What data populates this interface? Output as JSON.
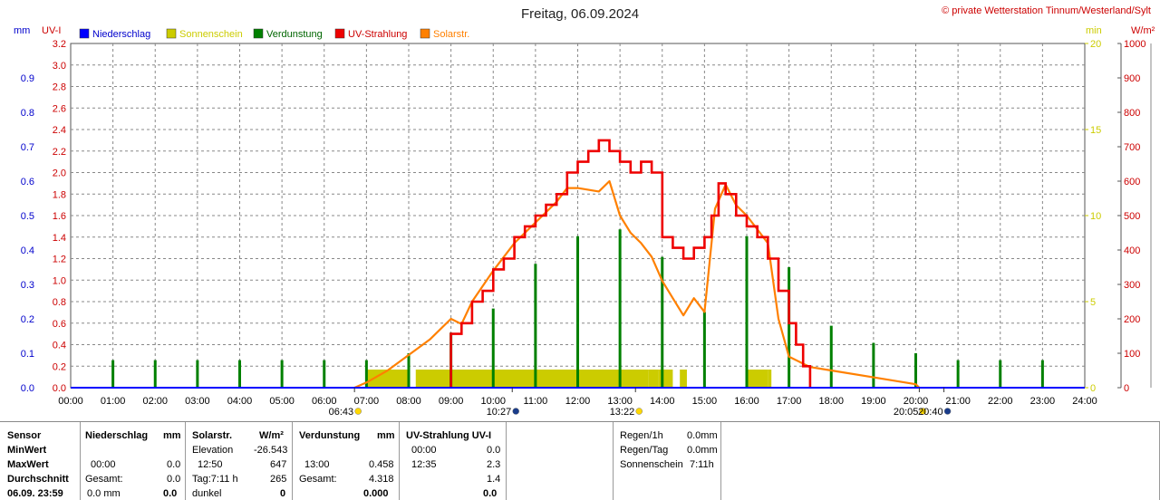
{
  "title": "Freitag, 06.09.2024",
  "copyright": "© private Wetterstation Tinnum/Westerland/Sylt",
  "unit_labels": {
    "mm": "mm",
    "uvi": "UV-I",
    "min": "min",
    "wm2": "W/m²"
  },
  "colors": {
    "niederschlag": "#0000ff",
    "sonnenschein": "#cccc00",
    "verdunstung": "#008000",
    "uv": "#ee0000",
    "solar": "#ff8000"
  },
  "legend": [
    {
      "label": "Niederschlag",
      "color": "#0000ff",
      "text_color": "#0000cc"
    },
    {
      "label": "Sonnenschein",
      "color": "#cccc00",
      "text_color": "#cccc00"
    },
    {
      "label": "Verdunstung",
      "color": "#008000",
      "text_color": "#006600"
    },
    {
      "label": "UV-Strahlung",
      "color": "#ee0000",
      "text_color": "#cc0000"
    },
    {
      "label": "Solarstr.",
      "color": "#ff8000",
      "text_color": "#ff8000"
    }
  ],
  "markers": [
    {
      "time": "13:22",
      "icon": "moon-icon"
    },
    {
      "time": "06:43",
      "icon": "sunrise-icon"
    },
    {
      "time": "10:27",
      "icon": "moon-phase-icon"
    },
    {
      "time": "20:05",
      "icon": "sunset-icon"
    },
    {
      "time": "20:40",
      "icon": "moon-phase-icon"
    }
  ],
  "chart_data": {
    "type": "line",
    "x_ticks": [
      "00:00",
      "01:00",
      "02:00",
      "03:00",
      "04:00",
      "05:00",
      "06:00",
      "07:00",
      "08:00",
      "09:00",
      "10:00",
      "11:00",
      "12:00",
      "13:00",
      "14:00",
      "15:00",
      "16:00",
      "17:00",
      "18:00",
      "19:00",
      "20:00",
      "21:00",
      "22:00",
      "23:00",
      "24:00"
    ],
    "y_mm_ticks": [
      "0.0",
      "0.1",
      "0.2",
      "0.3",
      "0.4",
      "0.5",
      "0.6",
      "0.7",
      "0.8",
      "0.9"
    ],
    "y_mm_range": [
      0,
      1.0
    ],
    "y_uv_ticks": [
      "0.0",
      "0.2",
      "0.4",
      "0.6",
      "0.8",
      "1.0",
      "1.2",
      "1.4",
      "1.6",
      "1.8",
      "2.0",
      "2.2",
      "2.4",
      "2.6",
      "2.8",
      "3.0",
      "3.2"
    ],
    "y_uv_range": [
      0,
      3.2
    ],
    "y_min_ticks": [
      "0",
      "5",
      "10",
      "15",
      "20"
    ],
    "y_min_range": [
      0,
      20
    ],
    "y_wm2_ticks": [
      "0",
      "100",
      "200",
      "300",
      "400",
      "500",
      "600",
      "700",
      "800",
      "900",
      "1000"
    ],
    "y_wm2_range": [
      0,
      1000
    ],
    "grid": true,
    "series": [
      {
        "name": "UV-Strahlung",
        "axis": "UV-I",
        "x": [
          "09:00",
          "09:00",
          "09:15",
          "09:30",
          "09:45",
          "10:00",
          "10:15",
          "10:30",
          "10:45",
          "11:00",
          "11:15",
          "11:30",
          "11:45",
          "12:00",
          "12:15",
          "12:30",
          "12:45",
          "13:00",
          "13:15",
          "13:30",
          "13:45",
          "14:00",
          "14:15",
          "14:30",
          "14:45",
          "15:00",
          "15:10",
          "15:20",
          "15:30",
          "15:45",
          "16:00",
          "16:15",
          "16:30",
          "16:45",
          "17:00",
          "17:10",
          "17:20",
          "17:30"
        ],
        "values": [
          0.0,
          0.5,
          0.6,
          0.8,
          0.9,
          1.1,
          1.2,
          1.4,
          1.5,
          1.6,
          1.7,
          1.8,
          2.0,
          2.1,
          2.2,
          2.3,
          2.2,
          2.1,
          2.0,
          2.1,
          2.0,
          1.4,
          1.3,
          1.2,
          1.3,
          1.4,
          1.6,
          1.9,
          1.8,
          1.6,
          1.5,
          1.4,
          1.2,
          0.9,
          0.6,
          0.4,
          0.2,
          0.0
        ]
      },
      {
        "name": "Solarstr.",
        "axis": "W/m²",
        "x": [
          "06:43",
          "07:00",
          "07:30",
          "08:00",
          "08:30",
          "09:00",
          "09:15",
          "09:30",
          "10:00",
          "10:30",
          "11:00",
          "11:30",
          "11:45",
          "12:00",
          "12:30",
          "12:45",
          "13:00",
          "13:15",
          "13:30",
          "13:45",
          "14:00",
          "14:15",
          "14:30",
          "14:45",
          "15:00",
          "15:15",
          "15:30",
          "15:45",
          "16:00",
          "16:30",
          "16:45",
          "17:00",
          "17:30",
          "18:00",
          "19:00",
          "20:00",
          "20:05"
        ],
        "values": [
          0,
          15,
          50,
          95,
          140,
          200,
          185,
          250,
          340,
          420,
          480,
          540,
          580,
          580,
          570,
          600,
          500,
          450,
          420,
          380,
          310,
          260,
          210,
          260,
          220,
          520,
          590,
          530,
          500,
          420,
          200,
          90,
          60,
          50,
          30,
          10,
          0
        ]
      },
      {
        "name": "Sonnenschein",
        "axis": "min",
        "x": [
          "06:50",
          "07:00",
          "08:00",
          "08:10",
          "13:40",
          "13:55",
          "14:15",
          "14:25",
          "14:35",
          "16:00",
          "16:30",
          "16:35",
          "22:00"
        ],
        "values": [
          0,
          1,
          0,
          1,
          1,
          1,
          0,
          1,
          0,
          1,
          1,
          0,
          0
        ]
      },
      {
        "name": "Verdunstung",
        "axis": "mm",
        "x": [
          "01:00",
          "02:00",
          "03:00",
          "04:00",
          "05:00",
          "06:00",
          "07:00",
          "08:00",
          "09:00",
          "10:00",
          "11:00",
          "12:00",
          "13:00",
          "14:00",
          "15:00",
          "16:00",
          "17:00",
          "18:00",
          "19:00",
          "20:00",
          "21:00",
          "22:00",
          "23:00"
        ],
        "values": [
          0.08,
          0.08,
          0.08,
          0.08,
          0.08,
          0.08,
          0.08,
          0.1,
          0.16,
          0.23,
          0.36,
          0.44,
          0.46,
          0.38,
          0.22,
          0.44,
          0.35,
          0.18,
          0.13,
          0.1,
          0.08,
          0.08,
          0.08
        ]
      },
      {
        "name": "Niederschlag",
        "axis": "mm",
        "x": [],
        "values": []
      }
    ]
  },
  "table": {
    "row_labels": {
      "sensor": "Sensor",
      "min": "MinWert",
      "max": "MaxWert",
      "avg": "Durchschnitt",
      "date": "06.09.  23:59"
    },
    "niederschlag": {
      "header": "Niederschlag",
      "unit": "mm",
      "r2c1": "00:00",
      "r2c2": "0.0",
      "r3c1": "Gesamt:",
      "r3c2": "0.0",
      "r4c1": "0.0 mm",
      "r4c2": "0.0"
    },
    "solar": {
      "header": "Solarstr.",
      "unit": "W/m²",
      "r1c1": "Elevation",
      "r1c2": "-26.543",
      "r2c1": "12:50",
      "r2c2": "647",
      "r3c1": "Tag:7:11 h",
      "r3c2": "265",
      "r4c1": "dunkel",
      "r4c2": "0"
    },
    "verdunstung": {
      "header": "Verdunstung",
      "unit": "mm",
      "r2c1": "13:00",
      "r2c2": "0.458",
      "r3c1": "Gesamt:",
      "r3c2": "4.318",
      "r4c2": "0.000"
    },
    "uv": {
      "header": "UV-Strahlung UV-I",
      "r1c1": "00:00",
      "r1c2": "0.0",
      "r2c1": "12:35",
      "r2c2": "2.3",
      "r3c2": "1.4",
      "r4c2": "0.0"
    },
    "regen": {
      "l1": "Regen/1h",
      "v1": "0.0mm",
      "l2": "Regen/Tag",
      "v2": "0.0mm",
      "l3": "Sonnenschein",
      "v3": "7:11h"
    }
  }
}
